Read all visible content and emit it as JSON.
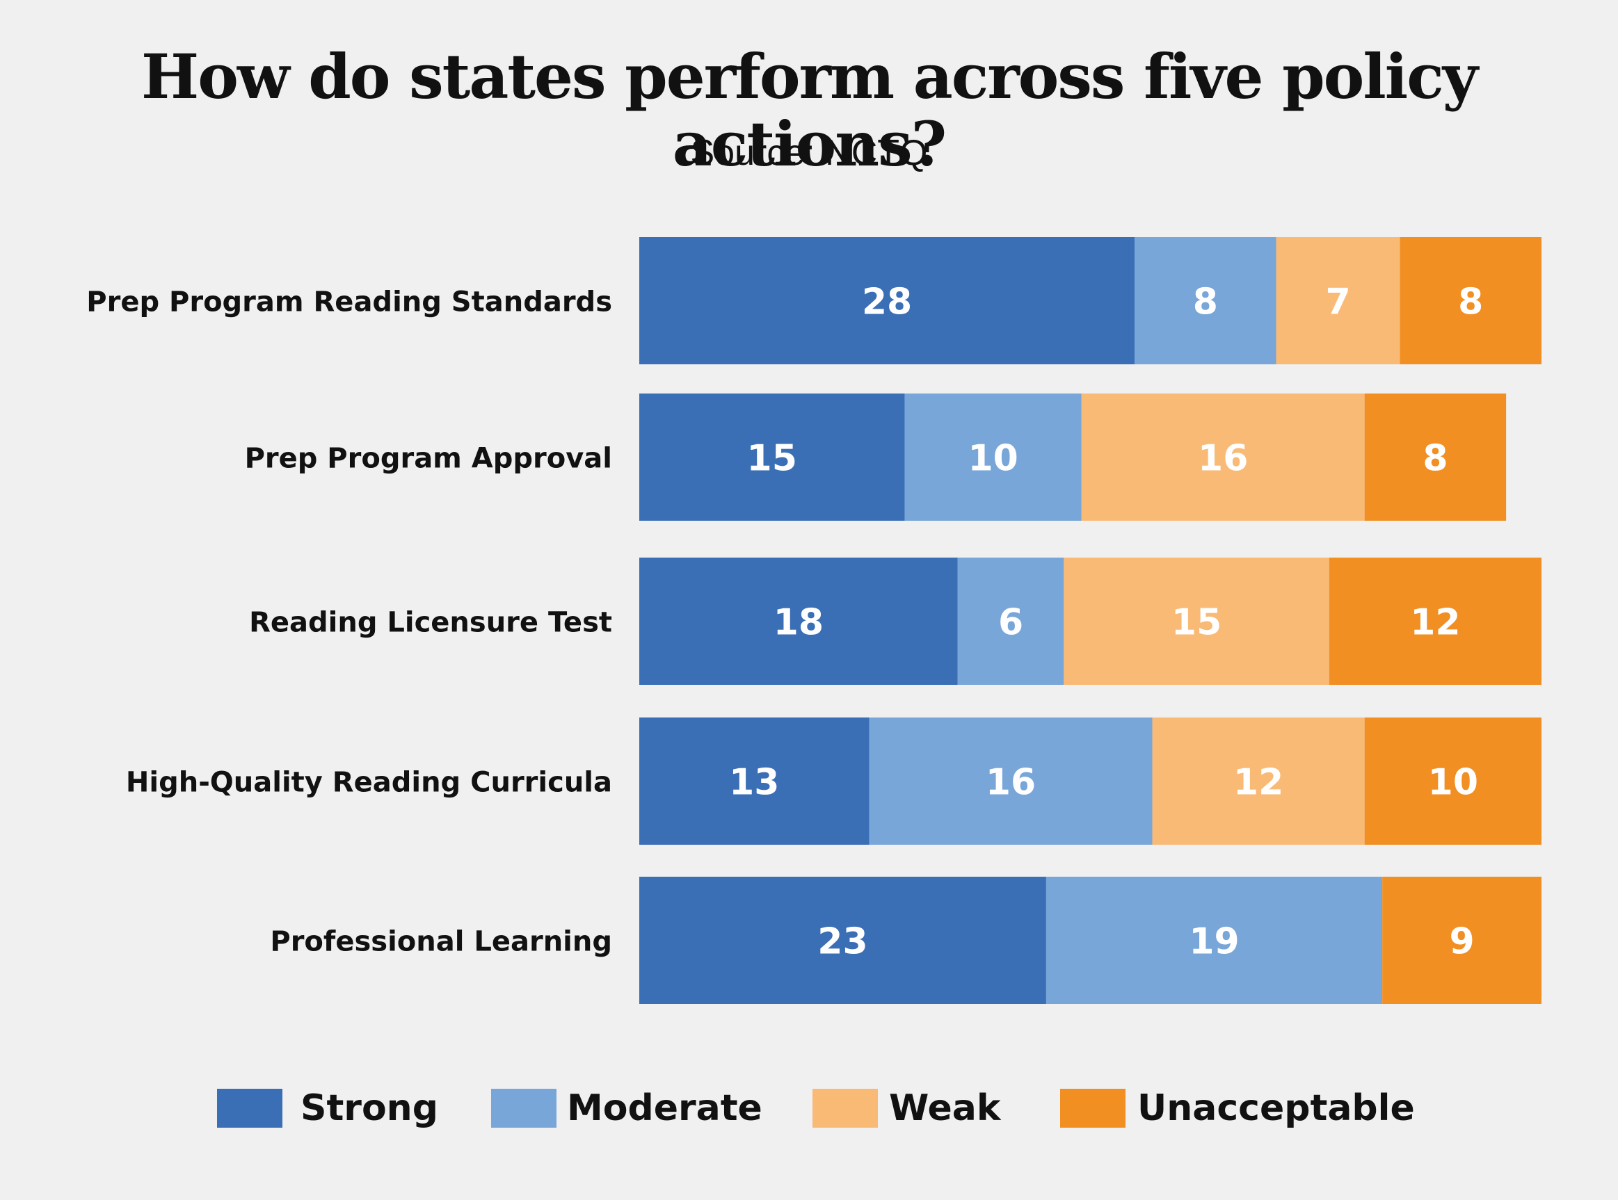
{
  "chart_data": {
    "type": "bar",
    "orientation": "horizontal",
    "stacked": true,
    "title": "How do states perform across five policy actions?",
    "subtitle": "Source: NCTQ",
    "categories": [
      "Prep Program Reading Standards",
      "Prep Program Approval",
      "Reading Licensure Test",
      "High-Quality Reading Curricula",
      "Professional Learning"
    ],
    "series": [
      {
        "name": "Strong",
        "color": "#3a6eb5",
        "values": [
          28,
          15,
          18,
          13,
          23
        ]
      },
      {
        "name": "Moderate",
        "color": "#78a6d8",
        "values": [
          8,
          10,
          6,
          16,
          19
        ]
      },
      {
        "name": "Weak",
        "color": "#f9ba76",
        "values": [
          7,
          16,
          15,
          12,
          0
        ]
      },
      {
        "name": "Unacceptable",
        "color": "#f28f22",
        "values": [
          8,
          8,
          12,
          10,
          9
        ]
      }
    ],
    "xlim": [
      0,
      51
    ],
    "grid": false,
    "legend_position": "bottom"
  }
}
